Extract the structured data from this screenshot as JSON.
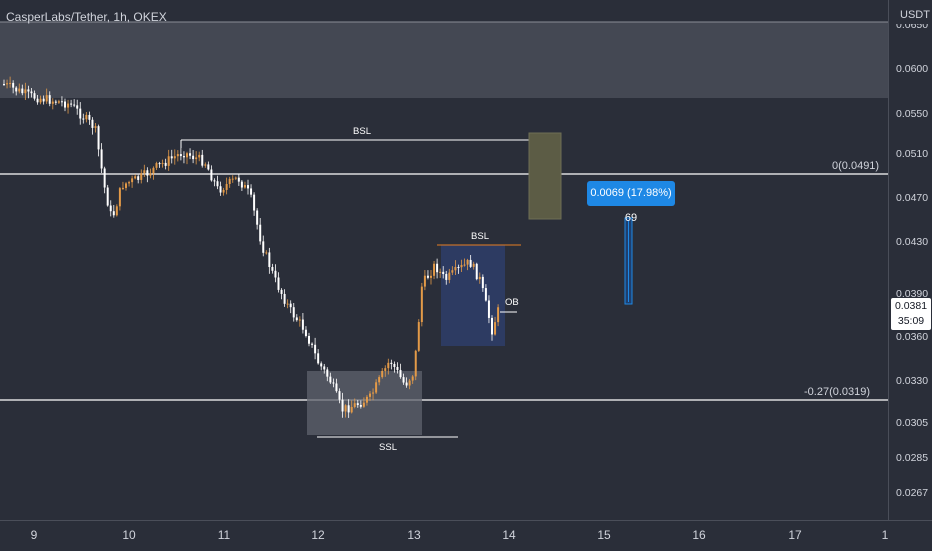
{
  "symbol": {
    "title": "CasperLabs/Tether, 1h, OKEX"
  },
  "price_axis": {
    "unit": "USDT",
    "labels": [
      "0.0600",
      "0.0550",
      "0.0510",
      "0.0470",
      "0.0430",
      "0.0390",
      "0.0360",
      "0.0330",
      "0.0305",
      "0.0285",
      "0.0267"
    ],
    "top_partial_label": "0.0650",
    "current_price": "0.0381",
    "countdown": "35:09"
  },
  "time_axis": {
    "labels": [
      "9",
      "10",
      "11",
      "12",
      "13",
      "14",
      "15",
      "16",
      "17",
      "1"
    ]
  },
  "annotations": {
    "fib_zero": "0(0.0491)",
    "fib_neg": "-0.27(0.0319)",
    "bsl_top": "BSL",
    "bsl_right": "BSL",
    "ssl": "SSL",
    "ob": "OB",
    "measure": "0.0069 (17.98%) 69"
  },
  "colors": {
    "background": "#2a2e39",
    "up_candle": "#e39a48",
    "down_candle": "#ffffff",
    "measure_blue": "#1e88e5",
    "orange_line": "#e67e22"
  }
}
